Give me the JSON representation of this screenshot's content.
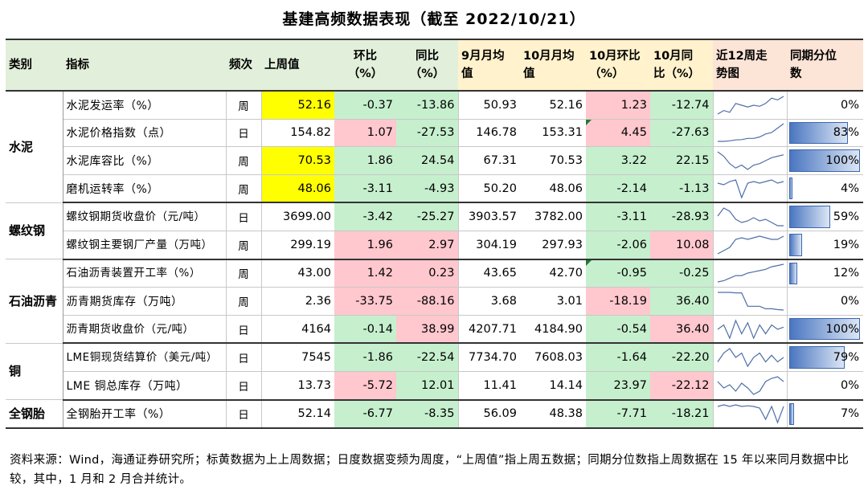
{
  "title": "基建高频数据表现（截至 2022/10/21）",
  "headers": {
    "category": "类别",
    "indicator": "指标",
    "frequency": "频次",
    "last_week": "上周值",
    "mom": "环比\n（%）",
    "yoy": "同比\n（%）",
    "sep_avg": "9月月均\n值",
    "oct_avg": "10月月均\n值",
    "oct_mom": "10月环比\n（%）",
    "oct_yoy": "10月同\n比（%）",
    "trend": "近12周走\n势图",
    "percentile": "同期分位\n数"
  },
  "groups": [
    {
      "name": "水泥",
      "rows": [
        {
          "indicator": "水泥发运率（%）",
          "freq": "周",
          "last": "52.16",
          "mom": "-0.37",
          "yoy": "-13.86",
          "sep": "50.93",
          "oct": "52.16",
          "omom": "1.23",
          "oyoy": "-12.74",
          "pct": "0%",
          "pctv": 0,
          "spark": [
            3,
            4,
            3.5,
            6,
            5.5,
            5,
            5.5,
            5.2,
            6,
            7.5,
            7,
            8
          ]
        },
        {
          "indicator": "水泥价格指数（点）",
          "freq": "日",
          "last": "154.82",
          "mom": "1.07",
          "yoy": "-27.53",
          "sep": "146.78",
          "oct": "153.31",
          "omom": "4.45",
          "oyoy": "-27.63",
          "pct": "83%",
          "pctv": 0.83,
          "spark": [
            2,
            2,
            2.2,
            2.5,
            2.6,
            3,
            3,
            3.5,
            4.5,
            5,
            6.5,
            8
          ]
        },
        {
          "indicator": "水泥库容比（%）",
          "freq": "周",
          "last": "70.53",
          "mom": "1.86",
          "yoy": "24.54",
          "sep": "67.31",
          "oct": "70.53",
          "omom": "3.22",
          "oyoy": "22.15",
          "pct": "100%",
          "pctv": 1.0,
          "spark": [
            8,
            6.5,
            4,
            2.5,
            3.5,
            2,
            3.5,
            4,
            5,
            6,
            6.5,
            7
          ]
        },
        {
          "indicator": "磨机运转率（%）",
          "freq": "周",
          "last": "48.06",
          "mom": "-3.11",
          "yoy": "-4.93",
          "sep": "50.20",
          "oct": "48.06",
          "omom": "-2.14",
          "oyoy": "-1.13",
          "pct": "4%",
          "pctv": 0.04,
          "spark": [
            6,
            5.5,
            6.5,
            7,
            1.5,
            6,
            6.5,
            6,
            6.5,
            7,
            6,
            6.5
          ]
        }
      ]
    },
    {
      "name": "螺纹钢",
      "rows": [
        {
          "indicator": "螺纹钢期货收盘价（元/吨）",
          "freq": "日",
          "last": "3699.00",
          "mom": "-3.42",
          "yoy": "-25.27",
          "sep": "3903.57",
          "oct": "3782.00",
          "omom": "-3.11",
          "oyoy": "-28.93",
          "pct": "59%",
          "pctv": 0.59,
          "spark": [
            5,
            7.5,
            6.5,
            4,
            3,
            3.5,
            4.5,
            3.5,
            4,
            3,
            2,
            2
          ]
        },
        {
          "indicator": "螺纹钢主要钢厂产量（万吨）",
          "freq": "周",
          "last": "299.19",
          "mom": "1.96",
          "yoy": "2.97",
          "sep": "304.19",
          "oct": "297.93",
          "omom": "-2.06",
          "oyoy": "10.08",
          "pct": "19%",
          "pctv": 0.19,
          "spark": [
            1.5,
            2.5,
            3.5,
            6,
            6.5,
            6,
            6.5,
            7,
            6.5,
            6,
            6,
            7
          ]
        }
      ]
    },
    {
      "name": "石油沥青",
      "rows": [
        {
          "indicator": "石油沥青装置开工率（%）",
          "freq": "周",
          "last": "43.00",
          "mom": "1.42",
          "yoy": "0.23",
          "sep": "43.65",
          "oct": "42.70",
          "omom": "-0.95",
          "oyoy": "-0.25",
          "pct": "12%",
          "pctv": 0.12,
          "spark": [
            1,
            1.5,
            2.5,
            3.5,
            3.5,
            4.5,
            5,
            5.5,
            6,
            7,
            7.5,
            8
          ]
        },
        {
          "indicator": "沥青期货库存（万吨）",
          "freq": "周",
          "last": "2.36",
          "mom": "-33.75",
          "yoy": "-88.16",
          "sep": "3.68",
          "oct": "3.01",
          "omom": "-18.19",
          "oyoy": "36.40",
          "pct": "0%",
          "pctv": 0,
          "spark": [
            8,
            8,
            8,
            7.8,
            7.8,
            2.5,
            2.5,
            2.5,
            1.5,
            1.5,
            1.2,
            1
          ]
        },
        {
          "indicator": "沥青期货收盘价（元/吨）",
          "freq": "日",
          "last": "4164",
          "mom": "-0.14",
          "yoy": "38.99",
          "sep": "4207.71",
          "oct": "4184.90",
          "omom": "-0.54",
          "oyoy": "36.40",
          "pct": "100%",
          "pctv": 1.0,
          "spark": [
            5,
            6,
            3,
            7,
            4,
            6.5,
            3,
            6,
            4,
            6,
            5,
            5.5
          ]
        }
      ]
    },
    {
      "name": "铜",
      "rows": [
        {
          "indicator": "LME铜现货结算价（美元/吨）",
          "freq": "日",
          "last": "7545",
          "mom": "-1.86",
          "yoy": "-22.54",
          "sep": "7734.70",
          "oct": "7608.03",
          "omom": "-1.64",
          "oyoy": "-22.20",
          "pct": "79%",
          "pctv": 0.79,
          "spark": [
            4,
            6,
            7,
            5,
            6,
            3,
            5,
            6,
            4,
            5.5,
            4,
            5
          ]
        },
        {
          "indicator": "LME 铜总库存（万吨）",
          "freq": "日",
          "last": "13.73",
          "mom": "-5.72",
          "yoy": "12.01",
          "sep": "11.41",
          "oct": "14.14",
          "omom": "23.97",
          "oyoy": "-22.12",
          "pct": "0%",
          "pctv": 0,
          "spark": [
            6,
            4,
            5,
            3,
            5.5,
            4,
            2,
            3,
            6,
            7,
            7.5,
            6
          ]
        }
      ]
    },
    {
      "name": "全钢胎",
      "rows": [
        {
          "indicator": "全钢胎开工率（%）",
          "freq": "日",
          "last": "52.14",
          "mom": "-6.77",
          "yoy": "-8.35",
          "sep": "56.09",
          "oct": "48.38",
          "omom": "-7.71",
          "oyoy": "-18.21",
          "pct": "7%",
          "pctv": 0.07,
          "spark": [
            6,
            6.5,
            6,
            6.5,
            6,
            6.2,
            6,
            5.5,
            2,
            6,
            1,
            6
          ]
        }
      ]
    }
  ],
  "note": "资料来源：Wind，海通证券研究所；标黄数据为上上周数据；日度数据变频为周度，“上周值”指上周五数据；同期分位数指上周数据在 15 年以来同月数据中比较，其中，1 月和 2 月合并统计。",
  "colors": {
    "up": "#ffc7ce",
    "down": "#c6efce",
    "stale": "#ffff00",
    "bar": "#4a76c0"
  }
}
